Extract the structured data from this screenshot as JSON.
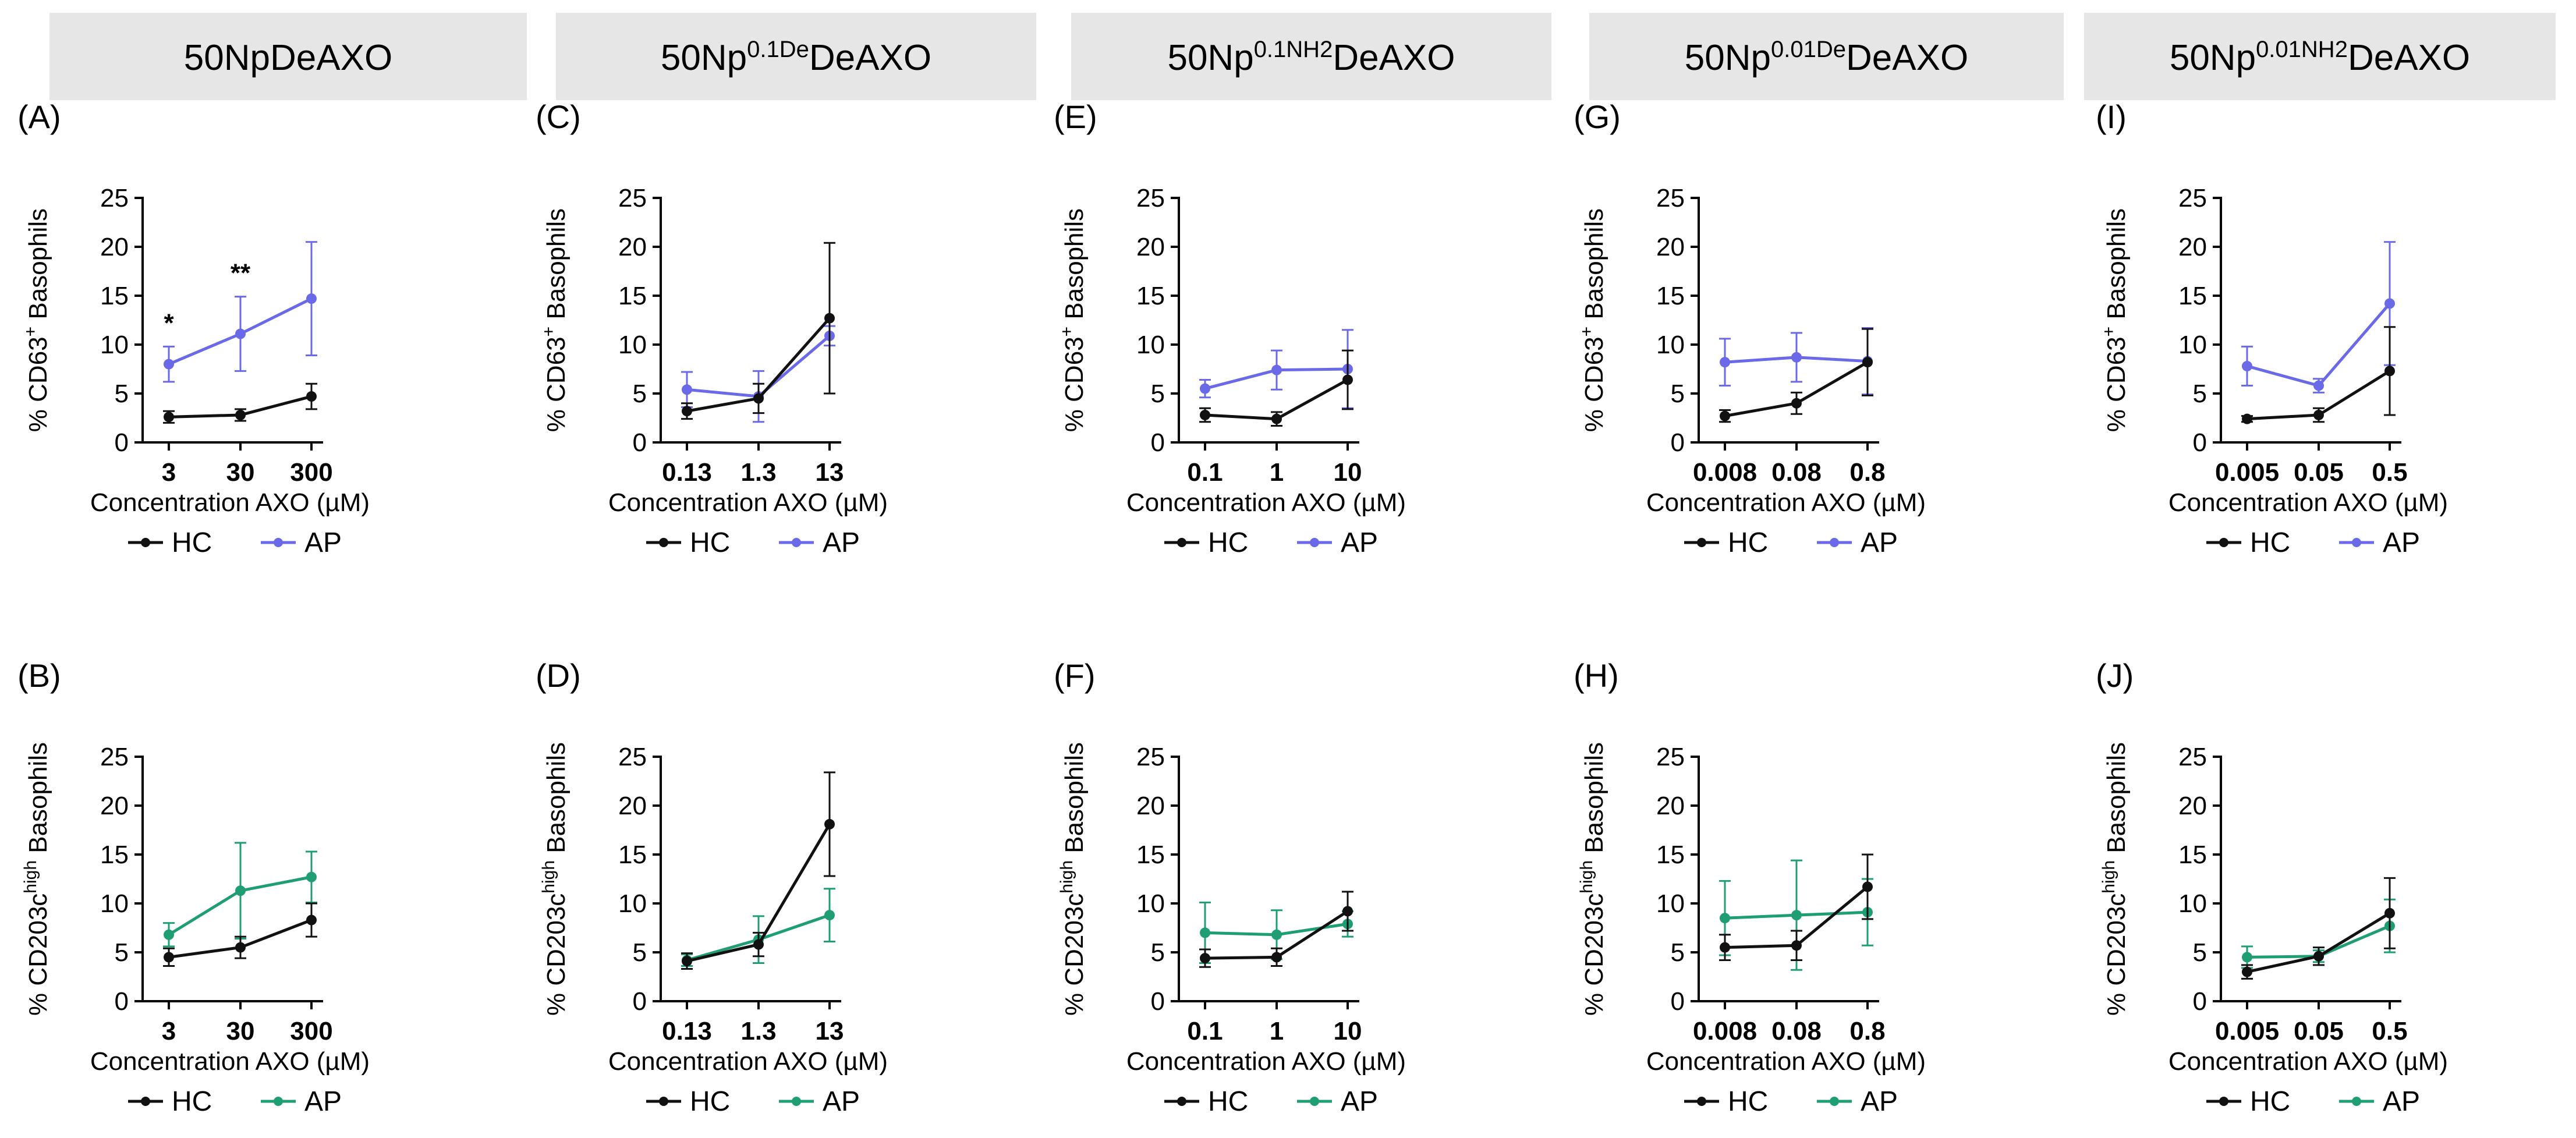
{
  "colors": {
    "hc": "#111111",
    "ap_top": "#6a6ae8",
    "ap_bottom": "#1f9e74",
    "header_bg": "#e6e6e6"
  },
  "headers": [
    {
      "base": "50NpDeAXO",
      "sup": "",
      "tail": ""
    },
    {
      "base": "50Np",
      "sup": "0.1De",
      "tail": "DeAXO"
    },
    {
      "base": "50Np",
      "sup": "0.1NH2",
      "tail": "DeAXO"
    },
    {
      "base": "50Np",
      "sup": "0.01De",
      "tail": "DeAXO"
    },
    {
      "base": "50Np",
      "sup": "0.01NH2",
      "tail": "DeAXO"
    }
  ],
  "chart_data": [
    {
      "panel": "(A)",
      "type": "line",
      "row": "top",
      "categories": [
        "3",
        "30",
        "300"
      ],
      "ylabel": {
        "pre": "% CD63",
        "sup": "+",
        "post": " Basophils"
      },
      "xlabel": "Concentration AXO (µM)",
      "yticks": [
        "0",
        "5",
        "10",
        "15",
        "20",
        "25"
      ],
      "ylim": [
        0,
        25
      ],
      "series": [
        {
          "name": "HC",
          "values": [
            2.6,
            2.8,
            4.7
          ],
          "err": [
            0.6,
            0.6,
            1.3
          ]
        },
        {
          "name": "AP",
          "values": [
            8.0,
            11.1,
            14.7
          ],
          "err": [
            1.8,
            3.8,
            5.8
          ]
        }
      ],
      "annotations": [
        {
          "category": "3",
          "text": "*"
        },
        {
          "category": "30",
          "text": "**"
        }
      ]
    },
    {
      "panel": "(B)",
      "type": "line",
      "row": "bottom",
      "categories": [
        "3",
        "30",
        "300"
      ],
      "ylabel": {
        "pre": "% CD203c",
        "sup": "high",
        "post": " Basophils"
      },
      "xlabel": "Concentration AXO (µM)",
      "yticks": [
        "0",
        "5",
        "10",
        "15",
        "20",
        "25"
      ],
      "ylim": [
        0,
        25
      ],
      "series": [
        {
          "name": "HC",
          "values": [
            4.5,
            5.5,
            8.3
          ],
          "err": [
            0.9,
            1.1,
            1.7
          ]
        },
        {
          "name": "AP",
          "values": [
            6.8,
            11.3,
            12.7
          ],
          "err": [
            1.2,
            4.9,
            2.6
          ]
        }
      ],
      "annotations": []
    },
    {
      "panel": "(C)",
      "type": "line",
      "row": "top",
      "categories": [
        "0.13",
        "1.3",
        "13"
      ],
      "ylabel": {
        "pre": "% CD63",
        "sup": "+",
        "post": " Basophils"
      },
      "xlabel": "Concentration AXO (µM)",
      "yticks": [
        "0",
        "5",
        "10",
        "15",
        "20",
        "25"
      ],
      "ylim": [
        0,
        25
      ],
      "series": [
        {
          "name": "HC",
          "values": [
            3.2,
            4.5,
            12.7
          ],
          "err": [
            0.8,
            1.5,
            7.7
          ]
        },
        {
          "name": "AP",
          "values": [
            5.4,
            4.7,
            10.9
          ],
          "err": [
            1.8,
            2.6,
            1.0
          ]
        }
      ],
      "annotations": []
    },
    {
      "panel": "(D)",
      "type": "line",
      "row": "bottom",
      "categories": [
        "0.13",
        "1.3",
        "13"
      ],
      "ylabel": {
        "pre": "% CD203c",
        "sup": "high",
        "post": " Basophils"
      },
      "xlabel": "Concentration AXO (µM)",
      "yticks": [
        "0",
        "5",
        "10",
        "15",
        "20",
        "25"
      ],
      "ylim": [
        0,
        25
      ],
      "series": [
        {
          "name": "HC",
          "values": [
            4.1,
            5.8,
            18.1
          ],
          "err": [
            0.8,
            1.2,
            5.3
          ]
        },
        {
          "name": "AP",
          "values": [
            4.2,
            6.3,
            8.8
          ],
          "err": [
            0.6,
            2.4,
            2.7
          ]
        }
      ],
      "annotations": []
    },
    {
      "panel": "(E)",
      "type": "line",
      "row": "top",
      "categories": [
        "0.1",
        "1",
        "10"
      ],
      "ylabel": {
        "pre": "% CD63",
        "sup": "+",
        "post": " Basophils"
      },
      "xlabel": "Concentration AXO (µM)",
      "yticks": [
        "0",
        "5",
        "10",
        "15",
        "20",
        "25"
      ],
      "ylim": [
        0,
        25
      ],
      "series": [
        {
          "name": "HC",
          "values": [
            2.8,
            2.4,
            6.4
          ],
          "err": [
            0.7,
            0.7,
            3.0
          ]
        },
        {
          "name": "AP",
          "values": [
            5.5,
            7.4,
            7.5
          ],
          "err": [
            0.9,
            2.0,
            4.0
          ]
        }
      ],
      "annotations": []
    },
    {
      "panel": "(F)",
      "type": "line",
      "row": "bottom",
      "categories": [
        "0.1",
        "1",
        "10"
      ],
      "ylabel": {
        "pre": "% CD203c",
        "sup": "high",
        "post": " Basophils"
      },
      "xlabel": "Concentration AXO (µM)",
      "yticks": [
        "0",
        "5",
        "10",
        "15",
        "20",
        "25"
      ],
      "ylim": [
        0,
        25
      ],
      "series": [
        {
          "name": "HC",
          "values": [
            4.4,
            4.5,
            9.2
          ],
          "err": [
            0.9,
            0.9,
            2.0
          ]
        },
        {
          "name": "AP",
          "values": [
            7.0,
            6.8,
            7.9
          ],
          "err": [
            3.1,
            2.5,
            1.3
          ]
        }
      ],
      "annotations": []
    },
    {
      "panel": "(G)",
      "type": "line",
      "row": "top",
      "categories": [
        "0.008",
        "0.08",
        "0.8"
      ],
      "ylabel": {
        "pre": "% CD63",
        "sup": "+",
        "post": " Basophils"
      },
      "xlabel": "Concentration AXO (µM)",
      "yticks": [
        "0",
        "5",
        "10",
        "15",
        "20",
        "25"
      ],
      "ylim": [
        0,
        25
      ],
      "series": [
        {
          "name": "HC",
          "values": [
            2.7,
            4.0,
            8.2
          ],
          "err": [
            0.6,
            1.1,
            3.4
          ]
        },
        {
          "name": "AP",
          "values": [
            8.2,
            8.7,
            8.3
          ],
          "err": [
            2.4,
            2.5,
            3.4
          ]
        }
      ],
      "annotations": []
    },
    {
      "panel": "(H)",
      "type": "line",
      "row": "bottom",
      "categories": [
        "0.008",
        "0.08",
        "0.8"
      ],
      "ylabel": {
        "pre": "% CD203c",
        "sup": "high",
        "post": " Basophils"
      },
      "xlabel": "Concentration AXO (µM)",
      "yticks": [
        "0",
        "5",
        "10",
        "15",
        "20",
        "25"
      ],
      "ylim": [
        0,
        25
      ],
      "series": [
        {
          "name": "HC",
          "values": [
            5.5,
            5.7,
            11.7
          ],
          "err": [
            1.3,
            1.5,
            3.3
          ]
        },
        {
          "name": "AP",
          "values": [
            8.5,
            8.8,
            9.1
          ],
          "err": [
            3.8,
            5.6,
            3.4
          ]
        }
      ],
      "annotations": []
    },
    {
      "panel": "(I)",
      "type": "line",
      "row": "top",
      "categories": [
        "0.005",
        "0.05",
        "0.5"
      ],
      "ylabel": {
        "pre": "% CD63",
        "sup": "+",
        "post": " Basophils"
      },
      "xlabel": "Concentration AXO (µM)",
      "yticks": [
        "0",
        "5",
        "10",
        "15",
        "20",
        "25"
      ],
      "ylim": [
        0,
        25
      ],
      "series": [
        {
          "name": "HC",
          "values": [
            2.4,
            2.8,
            7.3
          ],
          "err": [
            0.3,
            0.7,
            4.5
          ]
        },
        {
          "name": "AP",
          "values": [
            7.8,
            5.8,
            14.2
          ],
          "err": [
            2.0,
            0.7,
            6.3
          ]
        }
      ],
      "annotations": []
    },
    {
      "panel": "(J)",
      "type": "line",
      "row": "bottom",
      "categories": [
        "0.005",
        "0.05",
        "0.5"
      ],
      "ylabel": {
        "pre": "% CD203c",
        "sup": "high",
        "post": " Basophils"
      },
      "xlabel": "Concentration AXO (µM)",
      "yticks": [
        "0",
        "5",
        "10",
        "15",
        "20",
        "25"
      ],
      "ylim": [
        0,
        25
      ],
      "series": [
        {
          "name": "HC",
          "values": [
            3.0,
            4.6,
            9.0
          ],
          "err": [
            0.7,
            0.9,
            3.6
          ]
        },
        {
          "name": "AP",
          "values": [
            4.5,
            4.6,
            7.7
          ],
          "err": [
            1.1,
            0.6,
            2.7
          ]
        }
      ],
      "annotations": []
    }
  ]
}
